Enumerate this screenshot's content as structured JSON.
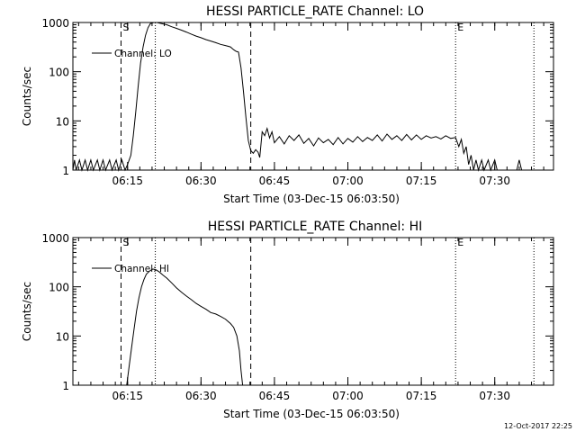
{
  "footer": {
    "timestamp": "12-Oct-2017 22:25"
  },
  "chart_data": [
    {
      "type": "line",
      "title": "HESSI PARTICLE_RATE Channel: LO",
      "xlabel": "Start Time (03-Dec-15 06:03:50)",
      "ylabel": "Counts/sec",
      "y_scale": "log",
      "xlim": [
        "06:03:50",
        "07:42:00"
      ],
      "ylim": [
        1,
        1000
      ],
      "x_ticks": [
        "06:15",
        "06:30",
        "06:45",
        "07:00",
        "07:15",
        "07:30"
      ],
      "y_ticks": [
        "1",
        "10",
        "100",
        "1000"
      ],
      "markers": [
        {
          "label": "S",
          "time": "06:13:40",
          "style": "dashed"
        },
        {
          "label": "",
          "time": "06:20:40",
          "style": "dotted"
        },
        {
          "label": "",
          "time": "06:40:10",
          "style": "dashed"
        },
        {
          "label": "E",
          "time": "07:22:00",
          "style": "dotted"
        },
        {
          "label": "",
          "time": "07:38:00",
          "style": "dotted"
        }
      ],
      "legend": {
        "entries": [
          "Channel: LO"
        ],
        "placement": "top-left"
      },
      "series": [
        {
          "name": "Channel: LO",
          "points": [
            [
              "06:03:50",
              1
            ],
            [
              "06:04:10",
              1.6
            ],
            [
              "06:04:30",
              1
            ],
            [
              "06:05:10",
              1.6
            ],
            [
              "06:05:40",
              1
            ],
            [
              "06:06:20",
              1.6
            ],
            [
              "06:06:50",
              1
            ],
            [
              "06:07:30",
              1.6
            ],
            [
              "06:08:00",
              1
            ],
            [
              "06:08:50",
              1.6
            ],
            [
              "06:09:20",
              1
            ],
            [
              "06:10:00",
              1.6
            ],
            [
              "06:10:30",
              1
            ],
            [
              "06:11:20",
              1.6
            ],
            [
              "06:11:50",
              1
            ],
            [
              "06:12:40",
              1.6
            ],
            [
              "06:13:10",
              1
            ],
            [
              "06:13:50",
              1.6
            ],
            [
              "06:14:30",
              1
            ],
            [
              "06:15:00",
              1.3
            ],
            [
              "06:15:40",
              2
            ],
            [
              "06:16:10",
              5
            ],
            [
              "06:16:40",
              15
            ],
            [
              "06:17:10",
              50
            ],
            [
              "06:17:40",
              150
            ],
            [
              "06:18:10",
              320
            ],
            [
              "06:18:40",
              550
            ],
            [
              "06:19:10",
              780
            ],
            [
              "06:19:40",
              950
            ],
            [
              "06:20:20",
              1000
            ],
            [
              "06:21:00",
              1000
            ],
            [
              "06:22:00",
              950
            ],
            [
              "06:23:00",
              900
            ],
            [
              "06:24:00",
              820
            ],
            [
              "06:25:00",
              760
            ],
            [
              "06:26:00",
              700
            ],
            [
              "06:27:00",
              640
            ],
            [
              "06:28:00",
              580
            ],
            [
              "06:29:00",
              530
            ],
            [
              "06:30:00",
              490
            ],
            [
              "06:31:00",
              450
            ],
            [
              "06:32:00",
              420
            ],
            [
              "06:33:00",
              390
            ],
            [
              "06:34:00",
              360
            ],
            [
              "06:35:00",
              340
            ],
            [
              "06:36:00",
              320
            ],
            [
              "06:36:40",
              280
            ],
            [
              "06:37:10",
              260
            ],
            [
              "06:37:40",
              250
            ],
            [
              "06:38:10",
              120
            ],
            [
              "06:38:40",
              40
            ],
            [
              "06:39:10",
              12
            ],
            [
              "06:39:40",
              4
            ],
            [
              "06:40:10",
              2.5
            ],
            [
              "06:40:40",
              2.2
            ],
            [
              "06:41:10",
              2.6
            ],
            [
              "06:41:40",
              2.3
            ],
            [
              "06:42:00",
              1.8
            ],
            [
              "06:42:30",
              6
            ],
            [
              "06:43:00",
              5
            ],
            [
              "06:43:30",
              7
            ],
            [
              "06:44:00",
              4.5
            ],
            [
              "06:44:30",
              6
            ],
            [
              "06:45:00",
              3.6
            ],
            [
              "06:46:00",
              4.8
            ],
            [
              "06:47:00",
              3.4
            ],
            [
              "06:48:00",
              5
            ],
            [
              "06:49:00",
              4
            ],
            [
              "06:50:00",
              5.2
            ],
            [
              "06:51:00",
              3.5
            ],
            [
              "06:52:00",
              4.4
            ],
            [
              "06:53:00",
              3.1
            ],
            [
              "06:54:00",
              4.5
            ],
            [
              "06:55:00",
              3.6
            ],
            [
              "06:56:00",
              4.2
            ],
            [
              "06:57:00",
              3.3
            ],
            [
              "06:58:00",
              4.6
            ],
            [
              "06:59:00",
              3.4
            ],
            [
              "07:00:00",
              4.4
            ],
            [
              "07:01:00",
              3.7
            ],
            [
              "07:02:00",
              4.8
            ],
            [
              "07:03:00",
              3.8
            ],
            [
              "07:04:00",
              4.6
            ],
            [
              "07:05:00",
              4
            ],
            [
              "07:06:00",
              5.2
            ],
            [
              "07:07:00",
              3.9
            ],
            [
              "07:08:00",
              5.4
            ],
            [
              "07:09:00",
              4.2
            ],
            [
              "07:10:00",
              5
            ],
            [
              "07:11:00",
              4
            ],
            [
              "07:12:00",
              5.3
            ],
            [
              "07:13:00",
              4.1
            ],
            [
              "07:14:00",
              5.2
            ],
            [
              "07:15:00",
              4.2
            ],
            [
              "07:16:00",
              5
            ],
            [
              "07:17:00",
              4.5
            ],
            [
              "07:18:00",
              4.8
            ],
            [
              "07:19:00",
              4.3
            ],
            [
              "07:20:00",
              5
            ],
            [
              "07:21:00",
              4.4
            ],
            [
              "07:22:00",
              4.6
            ],
            [
              "07:22:40",
              3
            ],
            [
              "07:23:10",
              4.2
            ],
            [
              "07:23:40",
              2.2
            ],
            [
              "07:24:10",
              3
            ],
            [
              "07:24:40",
              1.3
            ],
            [
              "07:25:10",
              2
            ],
            [
              "07:25:40",
              1
            ],
            [
              "07:26:10",
              1.6
            ],
            [
              "07:26:40",
              1
            ],
            [
              "07:27:20",
              1.6
            ],
            [
              "07:27:50",
              1
            ],
            [
              "07:28:40",
              1.6
            ],
            [
              "07:29:10",
              1
            ],
            [
              "07:30:00",
              1.6
            ],
            [
              "07:30:30",
              1
            ],
            [
              "07:34:30",
              1
            ],
            [
              "07:35:00",
              1.6
            ],
            [
              "07:35:30",
              1
            ]
          ]
        }
      ]
    },
    {
      "type": "line",
      "title": "HESSI PARTICLE_RATE Channel: HI",
      "xlabel": "Start Time (03-Dec-15 06:03:50)",
      "ylabel": "Counts/sec",
      "y_scale": "log",
      "xlim": [
        "06:03:50",
        "07:42:00"
      ],
      "ylim": [
        1,
        1000
      ],
      "x_ticks": [
        "06:15",
        "06:30",
        "06:45",
        "07:00",
        "07:15",
        "07:30"
      ],
      "y_ticks": [
        "1",
        "10",
        "100",
        "1000"
      ],
      "markers": [
        {
          "label": "S",
          "time": "06:13:40",
          "style": "dashed"
        },
        {
          "label": "",
          "time": "06:20:40",
          "style": "dotted"
        },
        {
          "label": "",
          "time": "06:40:10",
          "style": "dashed"
        },
        {
          "label": "E",
          "time": "07:22:00",
          "style": "dotted"
        },
        {
          "label": "",
          "time": "07:38:00",
          "style": "dotted"
        }
      ],
      "legend": {
        "entries": [
          "Channel: HI"
        ],
        "placement": "top-left"
      },
      "series": [
        {
          "name": "Channel: HI",
          "points": [
            [
              "06:14:50",
              1
            ],
            [
              "06:15:20",
              2.5
            ],
            [
              "06:15:50",
              6
            ],
            [
              "06:16:20",
              14
            ],
            [
              "06:16:50",
              32
            ],
            [
              "06:17:20",
              60
            ],
            [
              "06:17:50",
              100
            ],
            [
              "06:18:20",
              140
            ],
            [
              "06:18:50",
              180
            ],
            [
              "06:19:30",
              210
            ],
            [
              "06:20:10",
              230
            ],
            [
              "06:20:50",
              220
            ],
            [
              "06:21:30",
              200
            ],
            [
              "06:22:10",
              175
            ],
            [
              "06:23:00",
              150
            ],
            [
              "06:24:00",
              120
            ],
            [
              "06:25:00",
              95
            ],
            [
              "06:26:00",
              78
            ],
            [
              "06:27:00",
              65
            ],
            [
              "06:28:00",
              55
            ],
            [
              "06:29:00",
              46
            ],
            [
              "06:30:00",
              40
            ],
            [
              "06:31:00",
              35
            ],
            [
              "06:32:00",
              30
            ],
            [
              "06:33:00",
              28
            ],
            [
              "06:34:00",
              25
            ],
            [
              "06:35:00",
              22
            ],
            [
              "06:36:00",
              18
            ],
            [
              "06:36:40",
              15
            ],
            [
              "06:37:20",
              10
            ],
            [
              "06:37:50",
              5
            ],
            [
              "06:38:10",
              2
            ],
            [
              "06:38:30",
              1
            ]
          ]
        }
      ]
    }
  ]
}
